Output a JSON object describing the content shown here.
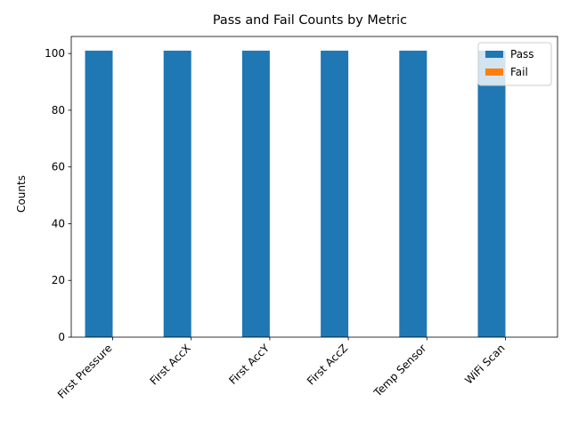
{
  "chart_data": {
    "type": "bar",
    "title": "Pass and Fail Counts by Metric",
    "xlabel": "",
    "ylabel": "Counts",
    "categories": [
      "First Pressure",
      "First AccX",
      "First AccY",
      "First AccZ",
      "Temp Sensor",
      "WiFi Scan"
    ],
    "series": [
      {
        "name": "Pass",
        "values": [
          101,
          101,
          101,
          101,
          101,
          101
        ],
        "color": "#1f77b4"
      },
      {
        "name": "Fail",
        "values": [
          0,
          0,
          0,
          0,
          0,
          0
        ],
        "color": "#ff7f0e"
      }
    ],
    "ylim": [
      0,
      106
    ],
    "yticks": [
      0,
      20,
      40,
      60,
      80,
      100
    ],
    "grid": false,
    "legend_position": "top-right"
  }
}
